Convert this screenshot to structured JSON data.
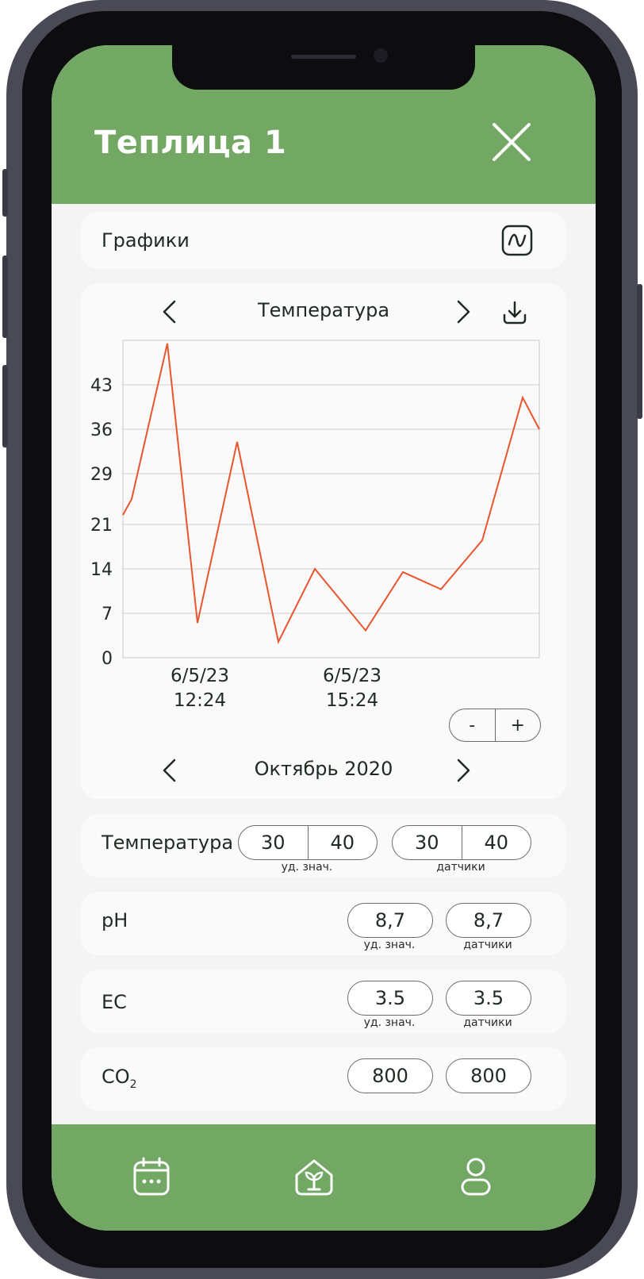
{
  "header": {
    "title": "Теплица 1"
  },
  "graphs_card": {
    "label": "Графики"
  },
  "chart_card": {
    "title": "Температура",
    "month": "Октябрь 2020",
    "zoom_out": "-",
    "zoom_in": "+"
  },
  "chart_data": {
    "type": "line",
    "y_ticks": [
      "0",
      "7",
      "14",
      "21",
      "29",
      "36",
      "43"
    ],
    "ylim": [
      0,
      50
    ],
    "x_tick_labels": [
      {
        "date": "6/5/23",
        "time": "12:24"
      },
      {
        "date": "6/5/23",
        "time": "15:24"
      }
    ],
    "series": [
      {
        "values": [
          22.5,
          25,
          49.5,
          5.5,
          34,
          2.5,
          14,
          4.3,
          13.5,
          10.8,
          18.5,
          41,
          36
        ]
      }
    ],
    "line_color": "#e8552e",
    "grid": true
  },
  "rows": [
    {
      "label": "Температура",
      "set_values": [
        "30",
        "40"
      ],
      "sensor_values": [
        "30",
        "40"
      ],
      "set_caption": "уд. знач.",
      "sensor_caption": "датчики"
    },
    {
      "label": "pH",
      "set_value": "8,7",
      "sensor_value": "8,7",
      "set_caption": "уд. знач.",
      "sensor_caption": "датчики"
    },
    {
      "label": "EC",
      "set_value": "3.5",
      "sensor_value": "3.5",
      "set_caption": "уд. знач.",
      "sensor_caption": "датчики"
    },
    {
      "label": "CO",
      "label_sub": "2",
      "set_value": "800",
      "sensor_value": "800"
    }
  ],
  "nav": {
    "items": [
      "calendar-icon",
      "greenhouse-icon",
      "profile-icon"
    ]
  },
  "colors": {
    "accent": "#72a864",
    "chart_line": "#e8552e"
  }
}
